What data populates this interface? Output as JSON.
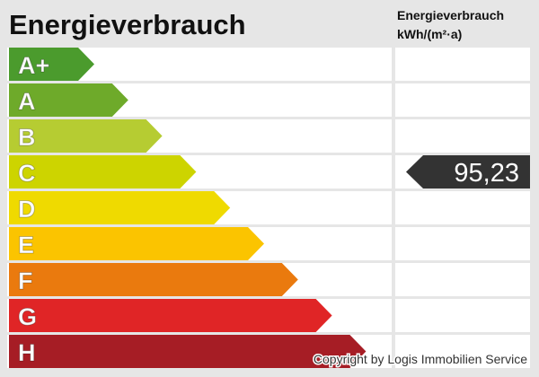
{
  "title": "Energieverbrauch",
  "unit_header": [
    "Energieverbrauch",
    "kWh/(m²·a)"
  ],
  "classes": [
    {
      "label": "A+",
      "color": "#4b9b2d"
    },
    {
      "label": "A",
      "color": "#6eaa2a"
    },
    {
      "label": "B",
      "color": "#b6cc32"
    },
    {
      "label": "C",
      "color": "#cdd400",
      "value": "95,23"
    },
    {
      "label": "D",
      "color": "#efda00"
    },
    {
      "label": "E",
      "color": "#fbc400"
    },
    {
      "label": "F",
      "color": "#ea7a0e"
    },
    {
      "label": "G",
      "color": "#e02526"
    },
    {
      "label": "H",
      "color": "#a61d25"
    }
  ],
  "copyright": "Copyright by Logis Immobilien Service"
}
